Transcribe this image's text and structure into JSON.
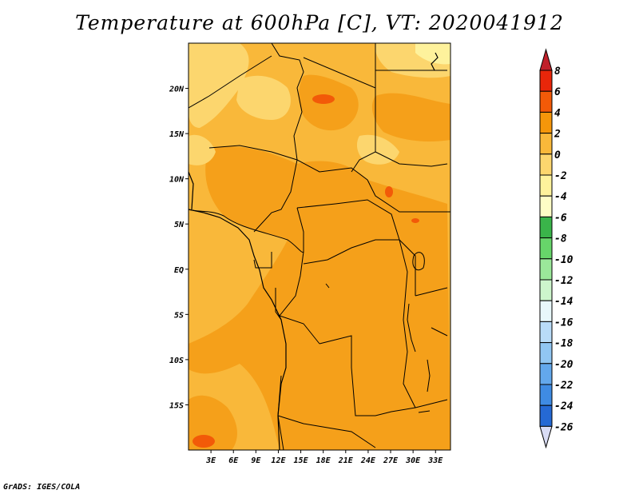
{
  "title": "Temperature at 600hPa [C], VT: 2020041912",
  "credit": "GrADS: IGES/COLA",
  "map": {
    "lon_range": [
      0,
      35
    ],
    "lat_range": [
      -20,
      25
    ],
    "lat_ticks": [
      {
        "value": 20,
        "label": "20N"
      },
      {
        "value": 15,
        "label": "15N"
      },
      {
        "value": 10,
        "label": "10N"
      },
      {
        "value": 5,
        "label": "5N"
      },
      {
        "value": 0,
        "label": "EQ"
      },
      {
        "value": -5,
        "label": "5S"
      },
      {
        "value": -10,
        "label": "10S"
      },
      {
        "value": -15,
        "label": "15S"
      }
    ],
    "lon_ticks": [
      {
        "value": 3,
        "label": "3E"
      },
      {
        "value": 6,
        "label": "6E"
      },
      {
        "value": 9,
        "label": "9E"
      },
      {
        "value": 12,
        "label": "12E"
      },
      {
        "value": 15,
        "label": "15E"
      },
      {
        "value": 18,
        "label": "18E"
      },
      {
        "value": 21,
        "label": "21E"
      },
      {
        "value": 24,
        "label": "24E"
      },
      {
        "value": 27,
        "label": "27E"
      },
      {
        "value": 30,
        "label": "30E"
      },
      {
        "value": 33,
        "label": "33E"
      }
    ]
  },
  "colorbar": {
    "labels": [
      "8",
      "6",
      "4",
      "2",
      "0",
      "-2",
      "-4",
      "-6",
      "-8",
      "-10",
      "-12",
      "-14",
      "-16",
      "-18",
      "-20",
      "-22",
      "-24",
      "-26"
    ],
    "colors": [
      "#e8260a",
      "#f25a08",
      "#f5960a",
      "#f9b83a",
      "#fcd66e",
      "#fef29c",
      "#fefdc6",
      "#3ab44a",
      "#67d56a",
      "#9be89a",
      "#cdf5cc",
      "#e8f8fa",
      "#b9dcf8",
      "#91c6f2",
      "#63a8ec",
      "#3f8be3",
      "#2569d4",
      "#1247b8",
      "#0a2a8c",
      "#0a0f5a"
    ],
    "top_arrow_color": "#c0202a",
    "bottom_arrow_color": "#d9dcf5"
  }
}
